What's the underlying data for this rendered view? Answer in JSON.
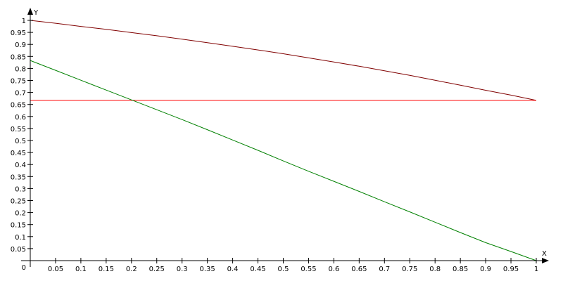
{
  "chart_data": {
    "type": "line",
    "xlabel": "X",
    "ylabel": "Y",
    "xlim": [
      0,
      1
    ],
    "ylim": [
      0,
      1
    ],
    "grid": false,
    "x_ticks": [
      0,
      0.05,
      0.1,
      0.15,
      0.2,
      0.25,
      0.3,
      0.35,
      0.4,
      0.45,
      0.5,
      0.55,
      0.6,
      0.65,
      0.7,
      0.75,
      0.8,
      0.85,
      0.9,
      0.95,
      1
    ],
    "y_ticks": [
      0,
      0.05,
      0.1,
      0.15,
      0.2,
      0.25,
      0.3,
      0.35,
      0.4,
      0.45,
      0.5,
      0.55,
      0.6,
      0.65,
      0.7,
      0.75,
      0.8,
      0.85,
      0.9,
      0.95,
      1
    ],
    "x_tick_labels": [
      "0",
      "0.05",
      "0.1",
      "0.15",
      "0.2",
      "0.25",
      "0.3",
      "0.35",
      "0.4",
      "0.45",
      "0.5",
      "0.55",
      "0.6",
      "0.65",
      "0.7",
      "0.75",
      "0.8",
      "0.85",
      "0.9",
      "0.95",
      "1"
    ],
    "y_tick_labels": [
      "0",
      "0.05",
      "0.1",
      "0.15",
      "0.2",
      "0.25",
      "0.3",
      "0.35",
      "0.4",
      "0.45",
      "0.5",
      "0.55",
      "0.6",
      "0.65",
      "0.7",
      "0.75",
      "0.8",
      "0.85",
      "0.9",
      "0.95",
      "1"
    ],
    "series": [
      {
        "color": "#800000",
        "x": [
          0,
          0.05,
          0.1,
          0.15,
          0.2,
          0.25,
          0.3,
          0.35,
          0.4,
          0.45,
          0.5,
          0.55,
          0.6,
          0.65,
          0.7,
          0.75,
          0.8,
          0.85,
          0.9,
          0.95,
          1
        ],
        "y": [
          1.0,
          0.988,
          0.975,
          0.963,
          0.949,
          0.936,
          0.922,
          0.907,
          0.892,
          0.877,
          0.861,
          0.844,
          0.827,
          0.809,
          0.79,
          0.771,
          0.751,
          0.73,
          0.709,
          0.689,
          0.667
        ]
      },
      {
        "color": "#ff0000",
        "x": [
          0,
          1
        ],
        "y": [
          0.667,
          0.667
        ]
      },
      {
        "color": "#008000",
        "x": [
          0,
          0.05,
          0.1,
          0.15,
          0.2,
          0.25,
          0.3,
          0.35,
          0.4,
          0.45,
          0.5,
          0.55,
          0.6,
          0.65,
          0.7,
          0.75,
          0.8,
          0.85,
          0.9,
          0.95,
          1
        ],
        "y": [
          0.833,
          0.792,
          0.751,
          0.71,
          0.669,
          0.628,
          0.587,
          0.545,
          0.502,
          0.459,
          0.415,
          0.372,
          0.33,
          0.288,
          0.245,
          0.203,
          0.16,
          0.117,
          0.075,
          0.038,
          0.0
        ]
      },
      {
        "color": "#800000",
        "dashed": true,
        "x": [
          0,
          1
        ],
        "y": [
          0,
          0
        ]
      }
    ]
  }
}
